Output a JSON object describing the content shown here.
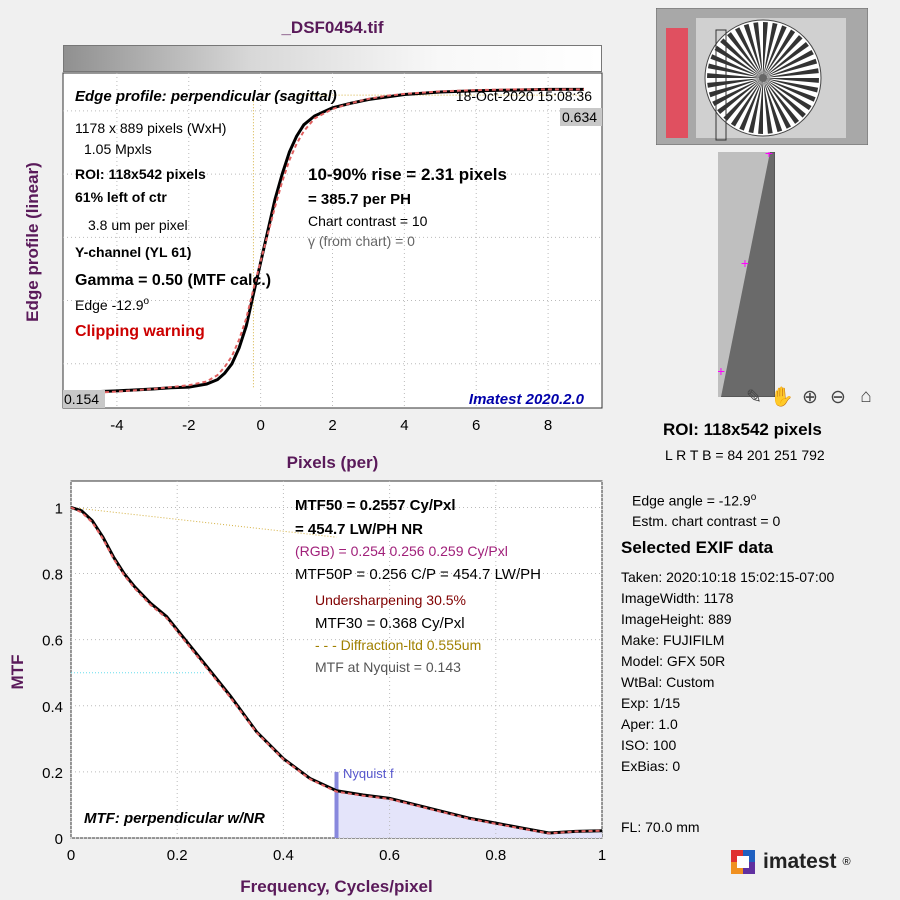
{
  "window": {
    "title": "_DSF0454.tif"
  },
  "edge_profile": {
    "heading": "Edge profile: perpendicular (sagittal)",
    "timestamp": "18-Oct-2020 15:08:36",
    "info_lines": [
      "1178 x 889 pixels (WxH)",
      "1.05 Mpxls",
      "ROI:  118x542 pixels",
      "61% left of ctr",
      "3.8 um per pixel",
      "Y-channel  (YL 61)",
      "Gamma = 0.50 (MTF calc.)",
      "Edge  -12.9",
      "Clipping warning"
    ],
    "edge_superscript": "o",
    "rise": "10-90% rise = 2.31 pixels",
    "per_ph": "=  385.7 per PH",
    "chart_contrast": "Chart contrast = 10",
    "gamma_chart": "γ (from chart) =     0",
    "top_value": "0.634",
    "bottom_value": "0.154",
    "watermark": "Imatest 2020.2.0",
    "ylabel": "Edge profile (linear)",
    "xlabel": "Pixels (per)"
  },
  "mtf": {
    "lines": [
      "MTF50 = 0.2557 Cy/Pxl",
      "= 454.7 LW/PH  NR",
      "(RGB) = 0.254  0.256  0.259 Cy/Pxl",
      "MTF50P = 0.256 C/P = 454.7 LW/PH",
      "Undersharpening 30.5%",
      "MTF30 = 0.368 Cy/Pxl",
      "- - - Diffraction-ltd  0.555um",
      "MTF at Nyquist = 0.143"
    ],
    "nyquist_label": "Nyquist f",
    "caption": "MTF: perpendicular w/NR",
    "ylabel": "MTF",
    "xlabel": "Frequency, Cycles/pixel"
  },
  "roi_panel": {
    "title": "ROI:  118x542 pixels",
    "coords": "L R  T B = 84 201  251 792"
  },
  "side_info": {
    "edge_angle": "Edge angle = -12.9",
    "edge_angle_sup": "o",
    "chart_contrast": "Estm. chart contrast = 0",
    "exif_title": "Selected EXIF data",
    "exif": [
      "Taken: 2020:10:18 15:02:15-07:00",
      "ImageWidth:  1178",
      "ImageHeight:  889",
      "Make:  FUJIFILM",
      "Model:  GFX 50R",
      "WtBal:  Custom",
      "Exp:    1/15",
      "Aper:   1.0",
      "ISO:    100",
      "ExBias:  0"
    ],
    "fl": "FL:    70.0 mm",
    "logo_text": "imatest",
    "logo_reg": "®"
  },
  "toolbar": {
    "icons": [
      "brush-icon",
      "pan-icon",
      "zoom-in-icon",
      "zoom-out-icon",
      "home-icon"
    ]
  },
  "colors": {
    "accent": "#5a1a5a",
    "warning": "#cc0000",
    "nyquist": "#8888dd",
    "rgb_text": "#a0207a",
    "under": "#800000",
    "diff": "#a08000"
  },
  "chart_data": [
    {
      "type": "line",
      "name_id": "edge-profile",
      "xlim": [
        -5.5,
        9.5
      ],
      "ylim": [
        0.13,
        0.66
      ],
      "xticks": [
        -4,
        -2,
        0,
        2,
        4,
        6,
        8
      ],
      "grid": true,
      "series": [
        {
          "x": [
            -5.5,
            -5,
            -4,
            -3,
            -2.5,
            -2,
            -1.5,
            -1.2,
            -1,
            -0.8,
            -0.6,
            -0.4,
            -0.2,
            0,
            0.2,
            0.4,
            0.6,
            0.8,
            1,
            1.2,
            1.5,
            2,
            2.5,
            3,
            3.5,
            4,
            5,
            6,
            7,
            8,
            9
          ],
          "y": [
            0.155,
            0.155,
            0.157,
            0.16,
            0.162,
            0.163,
            0.168,
            0.175,
            0.185,
            0.2,
            0.225,
            0.26,
            0.31,
            0.36,
            0.41,
            0.46,
            0.5,
            0.535,
            0.56,
            0.578,
            0.592,
            0.605,
            0.612,
            0.618,
            0.622,
            0.626,
            0.63,
            0.632,
            0.633,
            0.634,
            0.634
          ]
        },
        {
          "x": [
            -5.5,
            -5,
            -4,
            -3,
            -2.5,
            -2,
            -1.5,
            -1.2,
            -1,
            -0.8,
            -0.6,
            -0.4,
            -0.2,
            0,
            0.2,
            0.4,
            0.6,
            0.8,
            1,
            1.2,
            1.5,
            2,
            2.5,
            3,
            3.5,
            4,
            5,
            6,
            7,
            8,
            9
          ],
          "y": [
            0.152,
            0.153,
            0.156,
            0.16,
            0.163,
            0.166,
            0.172,
            0.182,
            0.195,
            0.212,
            0.238,
            0.272,
            0.318,
            0.362,
            0.405,
            0.448,
            0.488,
            0.522,
            0.548,
            0.568,
            0.588,
            0.603,
            0.612,
            0.619,
            0.624,
            0.627,
            0.631,
            0.633,
            0.634,
            0.634,
            0.634
          ]
        }
      ],
      "top_value": 0.634,
      "bottom_value": 0.154
    },
    {
      "type": "line",
      "name_id": "mtf",
      "xlim": [
        0,
        1
      ],
      "ylim": [
        0,
        1.08
      ],
      "xticks": [
        0,
        0.2,
        0.4,
        0.6,
        0.8,
        1
      ],
      "yticks": [
        0,
        0.2,
        0.4,
        0.6,
        0.8,
        1
      ],
      "grid": true,
      "nyquist": 0.5,
      "mtf_at_nyquist": 0.143,
      "series": [
        {
          "x": [
            0,
            0.02,
            0.04,
            0.06,
            0.08,
            0.1,
            0.12,
            0.15,
            0.18,
            0.2,
            0.25,
            0.3,
            0.35,
            0.4,
            0.45,
            0.5,
            0.55,
            0.6,
            0.65,
            0.7,
            0.75,
            0.8,
            0.85,
            0.9,
            0.95,
            1.0
          ],
          "y": [
            1.0,
            0.99,
            0.96,
            0.91,
            0.85,
            0.8,
            0.76,
            0.71,
            0.67,
            0.63,
            0.53,
            0.43,
            0.32,
            0.24,
            0.18,
            0.143,
            0.13,
            0.12,
            0.1,
            0.08,
            0.06,
            0.045,
            0.03,
            0.015,
            0.02,
            0.022
          ]
        },
        {
          "x": [
            0,
            0.02,
            0.04,
            0.06,
            0.08,
            0.1,
            0.12,
            0.15,
            0.18,
            0.2,
            0.25,
            0.3,
            0.35,
            0.4,
            0.45,
            0.5,
            0.55,
            0.6,
            0.65,
            0.7,
            0.75,
            0.8,
            0.85,
            0.9,
            0.95,
            1.0
          ],
          "y": [
            1.0,
            0.985,
            0.955,
            0.905,
            0.845,
            0.795,
            0.755,
            0.705,
            0.665,
            0.625,
            0.525,
            0.425,
            0.318,
            0.238,
            0.178,
            0.14,
            0.128,
            0.118,
            0.098,
            0.078,
            0.058,
            0.043,
            0.028,
            0.014,
            0.02,
            0.022
          ]
        }
      ],
      "diffraction": {
        "x": [
          0,
          0.5
        ],
        "y": [
          1.0,
          0.91
        ]
      }
    }
  ]
}
